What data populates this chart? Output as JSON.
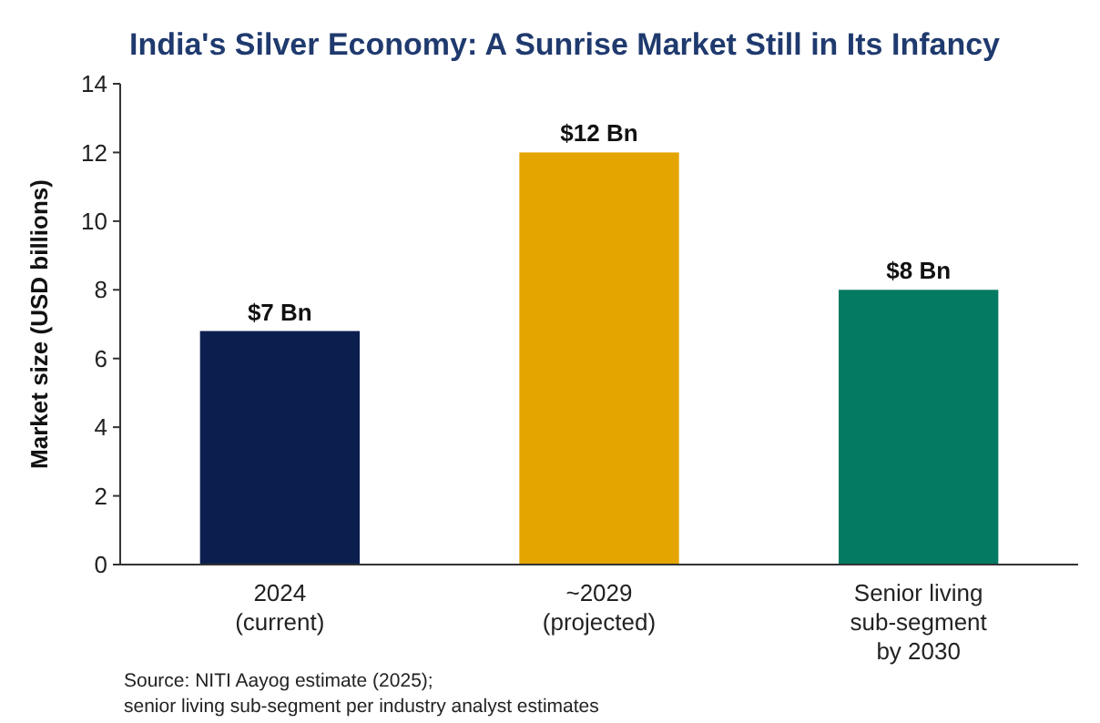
{
  "chart_data": {
    "type": "bar",
    "title": "India's Silver Economy: A Sunrise Market Still in Its Infancy",
    "ylabel": "Market size (USD billions)",
    "categories": [
      "2024\n(current)",
      "~2029\n(projected)",
      "Senior living\nsub-segment\nby 2030"
    ],
    "values": [
      6.8,
      12,
      8
    ],
    "colors": [
      "#0b1f4f",
      "#e5a500",
      "#047a62"
    ],
    "value_labels": [
      "$7 Bn",
      "$12 Bn",
      "$8 Bn"
    ],
    "ylim": [
      0,
      14
    ],
    "yticks": [
      0,
      2,
      4,
      6,
      8,
      10,
      12,
      14
    ],
    "annotations": [
      "Source: NITI Aayog estimate (2025);\nsenior living sub-segment per industry analyst estimates"
    ]
  }
}
